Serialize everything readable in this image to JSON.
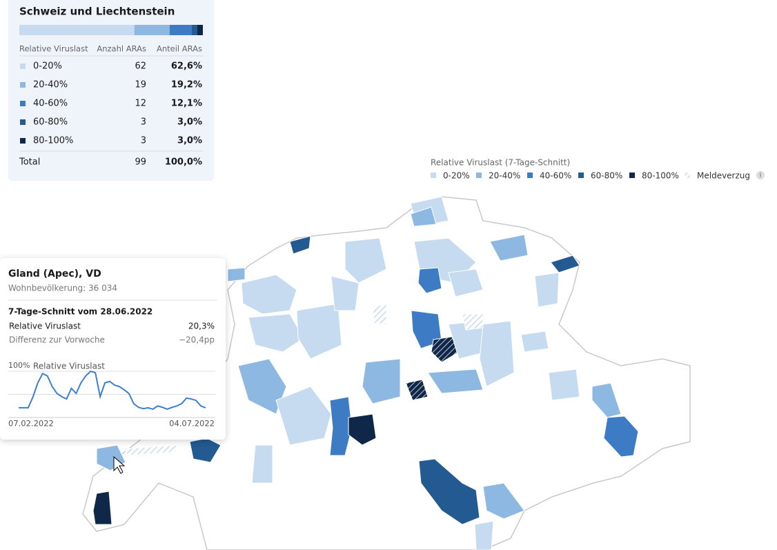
{
  "summary": {
    "title": "Schweiz und Liechtenstein",
    "columns": [
      "Relative Viruslast",
      "Anzahl ARAs",
      "Anteil ARAs"
    ],
    "rows": [
      {
        "label": "0-20%",
        "color": "#c6dbef",
        "count": 62,
        "share": 62.6,
        "share_label": "62,6%"
      },
      {
        "label": "20-40%",
        "color": "#8db8e2",
        "count": 19,
        "share": 19.2,
        "share_label": "19,2%"
      },
      {
        "label": "40-60%",
        "color": "#3d7cc4",
        "count": 12,
        "share": 12.1,
        "share_label": "12,1%"
      },
      {
        "label": "60-80%",
        "color": "#235a92",
        "count": 3,
        "share": 3.0,
        "share_label": "3,0%"
      },
      {
        "label": "80-100%",
        "color": "#0f2748",
        "count": 3,
        "share": 3.0,
        "share_label": "3,0%"
      }
    ],
    "total": {
      "label": "Total",
      "count": 99,
      "share_label": "100,0%"
    }
  },
  "legend": {
    "title": "Relative Viruslast (7-Tage-Schnitt)",
    "delay_label": "Meldeverzug",
    "info": "i"
  },
  "tooltip": {
    "title": "Gland (Apec), VD",
    "population": "Wohnbevölkerung: 36 034",
    "period": "7-Tage-Schnitt vom 28.06.2022",
    "rows": [
      {
        "label": "Relative Viruslast",
        "value": "20,3%"
      },
      {
        "label": "Differenz zur Vorwoche",
        "value": "−20,4pp"
      }
    ],
    "chart": {
      "type": "line",
      "title": "Relative Viruslast",
      "color": "#3a7fd0",
      "ylim": [
        0,
        100
      ],
      "yticks": [
        {
          "value": 100,
          "label": "100%"
        }
      ],
      "x_start": "07.02.2022",
      "x_end": "04.07.2022",
      "values": [
        21,
        21,
        21,
        45,
        75,
        95,
        90,
        67,
        52,
        45,
        40,
        63,
        52,
        75,
        90,
        100,
        97,
        45,
        75,
        78,
        70,
        67,
        60,
        52,
        30,
        22,
        19,
        21,
        18,
        25,
        22,
        18,
        22,
        25,
        30,
        42,
        40,
        37,
        25,
        21
      ]
    }
  }
}
